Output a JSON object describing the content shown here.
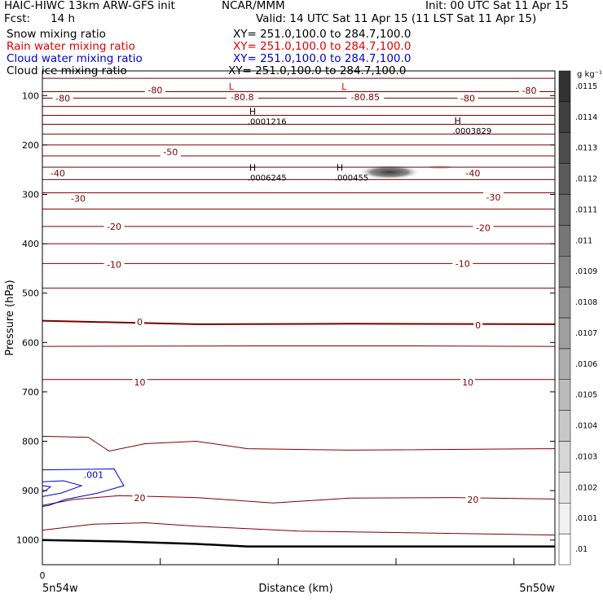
{
  "header": {
    "title_left": "HAIC-HIWC 13km ARW-GFS init",
    "org": "NCAR/MMM",
    "init": "Init: 00 UTC Sat 11 Apr 15",
    "fcst_label": "Fcst:",
    "fcst_value": "14 h",
    "valid": "Valid: 14 UTC Sat 11 Apr 15 (11 LST Sat 11 Apr 15)"
  },
  "fields": [
    {
      "name": "Snow mixing ratio",
      "xy": "XY= 251.0,100.0 to 284.7,100.0",
      "color": "#000000"
    },
    {
      "name": "Rain water mixing ratio",
      "xy": "XY= 251.0,100.0 to 284.7,100.0",
      "color": "#e00000"
    },
    {
      "name": "Cloud water mixing ratio",
      "xy": "XY= 251.0,100.0 to 284.7,100.0",
      "color": "#0000cc"
    },
    {
      "name": "Cloud ice mixing ratio",
      "xy": "XY= 251.0,100.0 to 284.7,100.0",
      "color": "#000000"
    }
  ],
  "colors": {
    "temperature_contour": "#7a0000",
    "cloud_water_contour": "#0000cc",
    "terrain": "#000000"
  },
  "chart_data": {
    "type": "cross-section",
    "xlabel": "Distance (km)",
    "ylabel": "Pressure (hPa)",
    "x_tick_labels": [
      "0"
    ],
    "x_endpoints": [
      "5n54w",
      "5n50w"
    ],
    "y_ticks": [
      100,
      200,
      300,
      400,
      500,
      600,
      700,
      800,
      900,
      1000
    ],
    "ylim": [
      50,
      1050
    ],
    "xlim": [
      0,
      1
    ],
    "colorbar": {
      "unit": "g kg⁻¹",
      "levels": [
        ".01",
        ".0101",
        ".0102",
        ".0103",
        ".0104",
        ".0105",
        ".0106",
        ".0107",
        ".0108",
        ".0109",
        ".011",
        ".0111",
        ".0112",
        ".0113",
        ".0114",
        ".0115"
      ]
    },
    "temperature_labels": [
      {
        "text": "-80",
        "x": 0.22,
        "p": 89
      },
      {
        "text": "-80",
        "x": 0.04,
        "p": 105
      },
      {
        "text": "-80.8",
        "x": 0.39,
        "p": 103
      },
      {
        "text": "-80.85",
        "x": 0.63,
        "p": 103
      },
      {
        "text": "-80",
        "x": 0.83,
        "p": 105
      },
      {
        "text": "-80",
        "x": 0.95,
        "p": 90
      },
      {
        "text": "-50",
        "x": 0.25,
        "p": 214
      },
      {
        "text": "-40",
        "x": 0.03,
        "p": 257
      },
      {
        "text": "-40",
        "x": 0.84,
        "p": 257
      },
      {
        "text": "-30",
        "x": 0.07,
        "p": 308
      },
      {
        "text": "-30",
        "x": 0.88,
        "p": 306
      },
      {
        "text": "-20",
        "x": 0.14,
        "p": 365
      },
      {
        "text": "-20",
        "x": 0.86,
        "p": 368
      },
      {
        "text": "-10",
        "x": 0.14,
        "p": 442
      },
      {
        "text": "-10",
        "x": 0.82,
        "p": 440
      },
      {
        "text": "0",
        "x": 0.19,
        "p": 558
      },
      {
        "text": "0",
        "x": 0.85,
        "p": 565
      },
      {
        "text": "10",
        "x": 0.19,
        "p": 680
      },
      {
        "text": "10",
        "x": 0.83,
        "p": 680
      },
      {
        "text": "20",
        "x": 0.19,
        "p": 915
      },
      {
        "text": "20",
        "x": 0.84,
        "p": 918
      }
    ],
    "pressure_extrema": [
      {
        "type": "L",
        "x": 0.37,
        "p": 88,
        "color": "#e00000"
      },
      {
        "type": "L",
        "x": 0.59,
        "p": 88,
        "color": "#e00000"
      },
      {
        "type": "H",
        "x": 0.41,
        "p": 138,
        "value": ".0001216"
      },
      {
        "type": "H",
        "x": 0.81,
        "p": 157,
        "value": ".0003829"
      },
      {
        "type": "H",
        "x": 0.41,
        "p": 252,
        "value": ".0006245"
      },
      {
        "type": "H",
        "x": 0.58,
        "p": 252,
        "value": ".000455"
      }
    ],
    "cloud_water_label": {
      "text": ".001",
      "x": 0.1,
      "p": 868
    },
    "temperature_isolines_p": [
      65,
      92,
      105,
      122,
      140,
      158,
      178,
      200,
      222,
      245,
      270,
      297,
      330,
      365,
      400,
      440,
      490
    ],
    "zero_isotherm": [
      [
        0,
        556
      ],
      [
        0.3,
        563
      ],
      [
        0.6,
        562
      ],
      [
        1,
        563
      ]
    ],
    "warm_isolines": [
      [
        [
          0,
          608
        ],
        [
          0.4,
          607
        ],
        [
          0.7,
          607
        ],
        [
          1,
          608
        ]
      ],
      [
        [
          0,
          675
        ],
        [
          0.3,
          675
        ],
        [
          0.6,
          675
        ],
        [
          1,
          675
        ]
      ],
      [
        [
          0,
          790
        ],
        [
          0.09,
          792
        ],
        [
          0.13,
          820
        ],
        [
          0.2,
          805
        ],
        [
          0.3,
          800
        ],
        [
          0.4,
          815
        ],
        [
          0.6,
          818
        ],
        [
          1,
          815
        ]
      ],
      [
        [
          0,
          930
        ],
        [
          0.06,
          918
        ],
        [
          0.15,
          910
        ],
        [
          0.3,
          914
        ],
        [
          0.45,
          925
        ],
        [
          0.6,
          915
        ],
        [
          0.8,
          914
        ],
        [
          1,
          917
        ]
      ],
      [
        [
          0,
          980
        ],
        [
          0.1,
          968
        ],
        [
          0.2,
          965
        ],
        [
          0.3,
          972
        ],
        [
          0.5,
          982
        ],
        [
          0.7,
          985
        ],
        [
          1,
          990
        ]
      ]
    ],
    "terrain": [
      [
        0,
        1000
      ],
      [
        0.15,
        1003
      ],
      [
        0.3,
        1008
      ],
      [
        0.4,
        1013
      ],
      [
        1,
        1013
      ]
    ]
  }
}
